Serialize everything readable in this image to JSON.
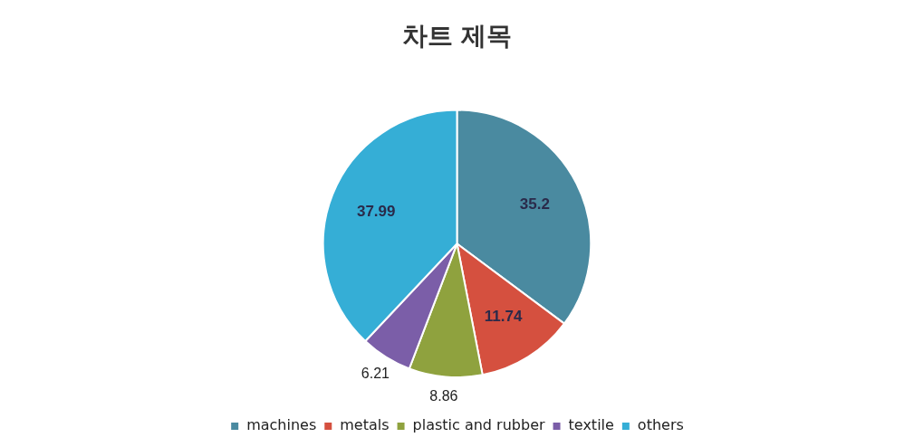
{
  "chart_data": {
    "type": "pie",
    "title": "차트 제목",
    "categories": [
      "machines",
      "metals",
      "plastic and rubber",
      "textile",
      "others"
    ],
    "values": [
      35.2,
      11.74,
      8.86,
      6.21,
      37.99
    ],
    "colors": [
      "#4a8aa0",
      "#d5503f",
      "#8fa23e",
      "#7b5ea8",
      "#35aed6"
    ],
    "data_labels": true,
    "legend": "bottom"
  }
}
